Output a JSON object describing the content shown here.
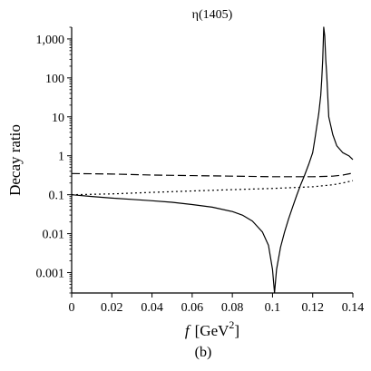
{
  "chart_data": {
    "type": "line",
    "title": "η(1405)",
    "xlabel_italic": "f",
    "xlabel_unit": "[GeV",
    "xlabel_exp": "2",
    "xlabel_close": "]",
    "ylabel": "Decay ratio",
    "panel_label": "(b)",
    "xlim": [
      0,
      0.14
    ],
    "ylim": [
      0.0003,
      2000
    ],
    "y_scale": "log",
    "x_ticks": [
      0,
      0.02,
      0.04,
      0.06,
      0.08,
      0.1,
      0.12,
      0.14
    ],
    "x_tick_labels": [
      "0",
      "0.02",
      "0.04",
      "0.06",
      "0.08",
      "0.1",
      "0.12",
      "0.14"
    ],
    "y_ticks": [
      0.001,
      0.01,
      0.1,
      1,
      10,
      100,
      1000
    ],
    "y_tick_labels": [
      "0.001",
      "0.01",
      "0.1",
      "1",
      "10",
      "100",
      "1,000"
    ],
    "series": [
      {
        "style": "solid",
        "x": [
          0,
          0.01,
          0.02,
          0.03,
          0.04,
          0.05,
          0.06,
          0.07,
          0.08,
          0.085,
          0.09,
          0.095,
          0.098,
          0.1,
          0.101,
          0.102,
          0.104,
          0.106,
          0.108,
          0.11,
          0.112,
          0.114,
          0.116,
          0.118,
          0.12,
          0.121,
          0.122,
          0.123,
          0.124,
          0.1245,
          0.125,
          0.1255,
          0.126,
          0.1265,
          0.127,
          0.128,
          0.13,
          0.132,
          0.135,
          0.138,
          0.14
        ],
        "y": [
          0.1,
          0.09,
          0.082,
          0.076,
          0.07,
          0.064,
          0.056,
          0.048,
          0.037,
          0.03,
          0.021,
          0.011,
          0.005,
          0.0012,
          0.0003,
          0.0012,
          0.0045,
          0.011,
          0.024,
          0.048,
          0.095,
          0.18,
          0.32,
          0.6,
          1.2,
          2.5,
          5.5,
          12,
          35,
          90,
          300,
          2000,
          1200,
          300,
          120,
          10,
          3.5,
          1.8,
          1.2,
          1.0,
          0.8
        ]
      },
      {
        "style": "dashed",
        "x": [
          0,
          0.02,
          0.04,
          0.06,
          0.08,
          0.1,
          0.12,
          0.13,
          0.135,
          0.14
        ],
        "y": [
          0.35,
          0.34,
          0.32,
          0.31,
          0.3,
          0.29,
          0.29,
          0.3,
          0.32,
          0.36
        ]
      },
      {
        "style": "dotted",
        "x": [
          0,
          0.02,
          0.04,
          0.06,
          0.08,
          0.1,
          0.12,
          0.13,
          0.135,
          0.14
        ],
        "y": [
          0.1,
          0.105,
          0.115,
          0.125,
          0.135,
          0.145,
          0.16,
          0.18,
          0.2,
          0.23
        ]
      }
    ]
  }
}
